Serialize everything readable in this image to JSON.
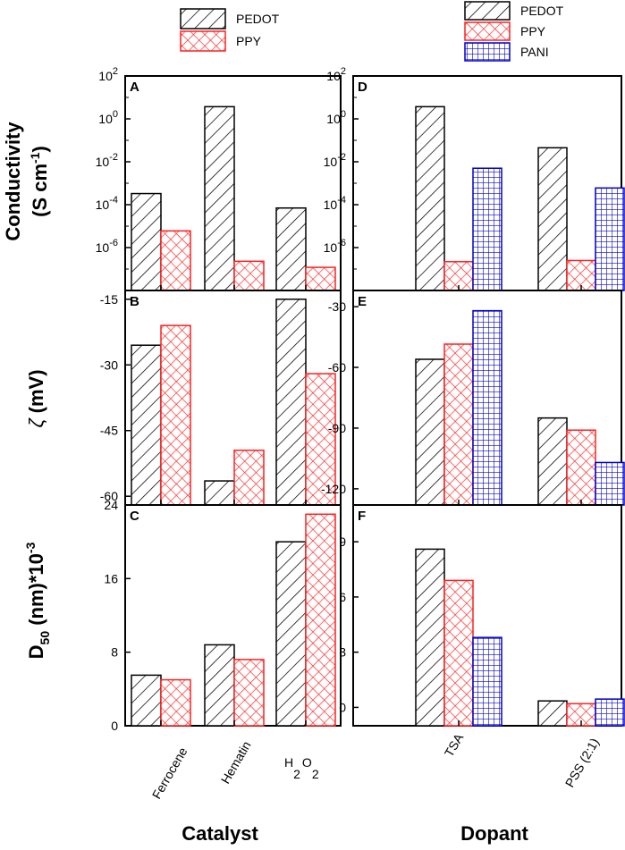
{
  "colors": {
    "pedot": "#000000",
    "ppy": "#ff2020",
    "pani": "#0000cc",
    "axis": "#000000"
  },
  "chart_data": [
    {
      "type": "bar",
      "panel": "A",
      "panel_label": "A",
      "scale": "log",
      "categories": [
        "Ferrocene",
        "Hematin",
        "H2O2"
      ],
      "series": [
        {
          "name": "PEDOT",
          "values": [
            0.00033,
            3.7,
            7e-05
          ]
        },
        {
          "name": "PPY",
          "values": [
            6e-06,
            2.3e-07,
            1.2e-07
          ]
        }
      ],
      "ylim": [
        1e-08,
        100
      ],
      "ytick_labels": [
        {
          "value": 100,
          "base": "10",
          "exp": "2"
        },
        {
          "value": 1,
          "base": "10",
          "exp": "0"
        },
        {
          "value": 0.01,
          "base": "10",
          "exp": "-2"
        },
        {
          "value": 0.0001,
          "base": "10",
          "exp": "-4"
        },
        {
          "value": 1e-06,
          "base": "10",
          "exp": "-6"
        }
      ]
    },
    {
      "type": "bar",
      "panel": "B",
      "panel_label": "B",
      "categories": [
        "Ferrocene",
        "Hematin",
        "H2O2"
      ],
      "series": [
        {
          "name": "PEDOT",
          "values": [
            -25.5,
            -56.5,
            -15
          ]
        },
        {
          "name": "PPY",
          "values": [
            -21,
            -49.5,
            -32
          ]
        }
      ],
      "ylim": [
        -62,
        -13
      ],
      "yticks": [
        -15,
        -30,
        -45,
        -60
      ]
    },
    {
      "type": "bar",
      "panel": "C",
      "panel_label": "C",
      "categories": [
        "Ferrocene",
        "Hematin",
        "H2O2"
      ],
      "series": [
        {
          "name": "PEDOT",
          "values": [
            5.5,
            8.8,
            20
          ]
        },
        {
          "name": "PPY",
          "values": [
            5,
            7.2,
            23
          ]
        }
      ],
      "ylim": [
        0,
        24
      ],
      "yticks": [
        0,
        8,
        16,
        24
      ]
    },
    {
      "type": "bar",
      "panel": "D",
      "panel_label": "D",
      "scale": "log",
      "categories": [
        "TSA",
        "PSS (2:1)"
      ],
      "series": [
        {
          "name": "PEDOT",
          "values": [
            3.7,
            0.045
          ]
        },
        {
          "name": "PPY",
          "values": [
            2.2e-07,
            2.5e-07
          ]
        },
        {
          "name": "PANI",
          "values": [
            0.005,
            0.0006
          ]
        }
      ],
      "ylim": [
        1e-08,
        100
      ],
      "ytick_labels": [
        {
          "value": 100,
          "base": "10",
          "exp": "2"
        },
        {
          "value": 1,
          "base": "10",
          "exp": "0"
        },
        {
          "value": 0.01,
          "base": "10",
          "exp": "-2"
        },
        {
          "value": 0.0001,
          "base": "10",
          "exp": "-4"
        },
        {
          "value": 1e-06,
          "base": "10",
          "exp": "-6"
        }
      ]
    },
    {
      "type": "bar",
      "panel": "E",
      "panel_label": "E",
      "categories": [
        "TSA",
        "PSS (2:1)"
      ],
      "series": [
        {
          "name": "PEDOT",
          "values": [
            -56,
            -85
          ]
        },
        {
          "name": "PPY",
          "values": [
            -48.5,
            -91
          ]
        },
        {
          "name": "PANI",
          "values": [
            -32,
            -107
          ]
        }
      ],
      "ylim": [
        -128,
        -22
      ],
      "yticks": [
        -30,
        -60,
        -90,
        -120
      ]
    },
    {
      "type": "bar",
      "panel": "F",
      "panel_label": "F",
      "categories": [
        "TSA",
        "PSS (2:1)"
      ],
      "series": [
        {
          "name": "PEDOT",
          "values": [
            8.6,
            0.35
          ]
        },
        {
          "name": "PPY",
          "values": [
            6.9,
            0.2
          ]
        },
        {
          "name": "PANI",
          "values": [
            3.8,
            0.45
          ]
        }
      ],
      "ylim": [
        -1,
        11
      ],
      "yticks": [
        0,
        3,
        6,
        9
      ]
    }
  ],
  "legend_left": [
    "PEDOT",
    "PPY"
  ],
  "legend_right": [
    "PEDOT",
    "PPY",
    "PANI"
  ],
  "ylabel_top": {
    "line1": "Conductivity",
    "line2_prefix": "(S cm",
    "line2_sup": "-1",
    "line2_suffix": ")"
  },
  "ylabel_mid": {
    "symbol": "ζ",
    "unit": "(mV)"
  },
  "ylabel_bot": {
    "prefix": "D",
    "sub": "50",
    "middle": " (nm)*10",
    "sup": "-3"
  },
  "xtick_left": {
    "ferrocene": "Ferrocene",
    "hematin": "Hematin",
    "h2o2": {
      "h": "H",
      "two_a": "2",
      "o": "O",
      "two_b": "2"
    }
  },
  "xtick_right": [
    "TSA",
    "PSS (2:1)"
  ],
  "xlabel_left": "Catalyst",
  "xlabel_right": "Dopant"
}
